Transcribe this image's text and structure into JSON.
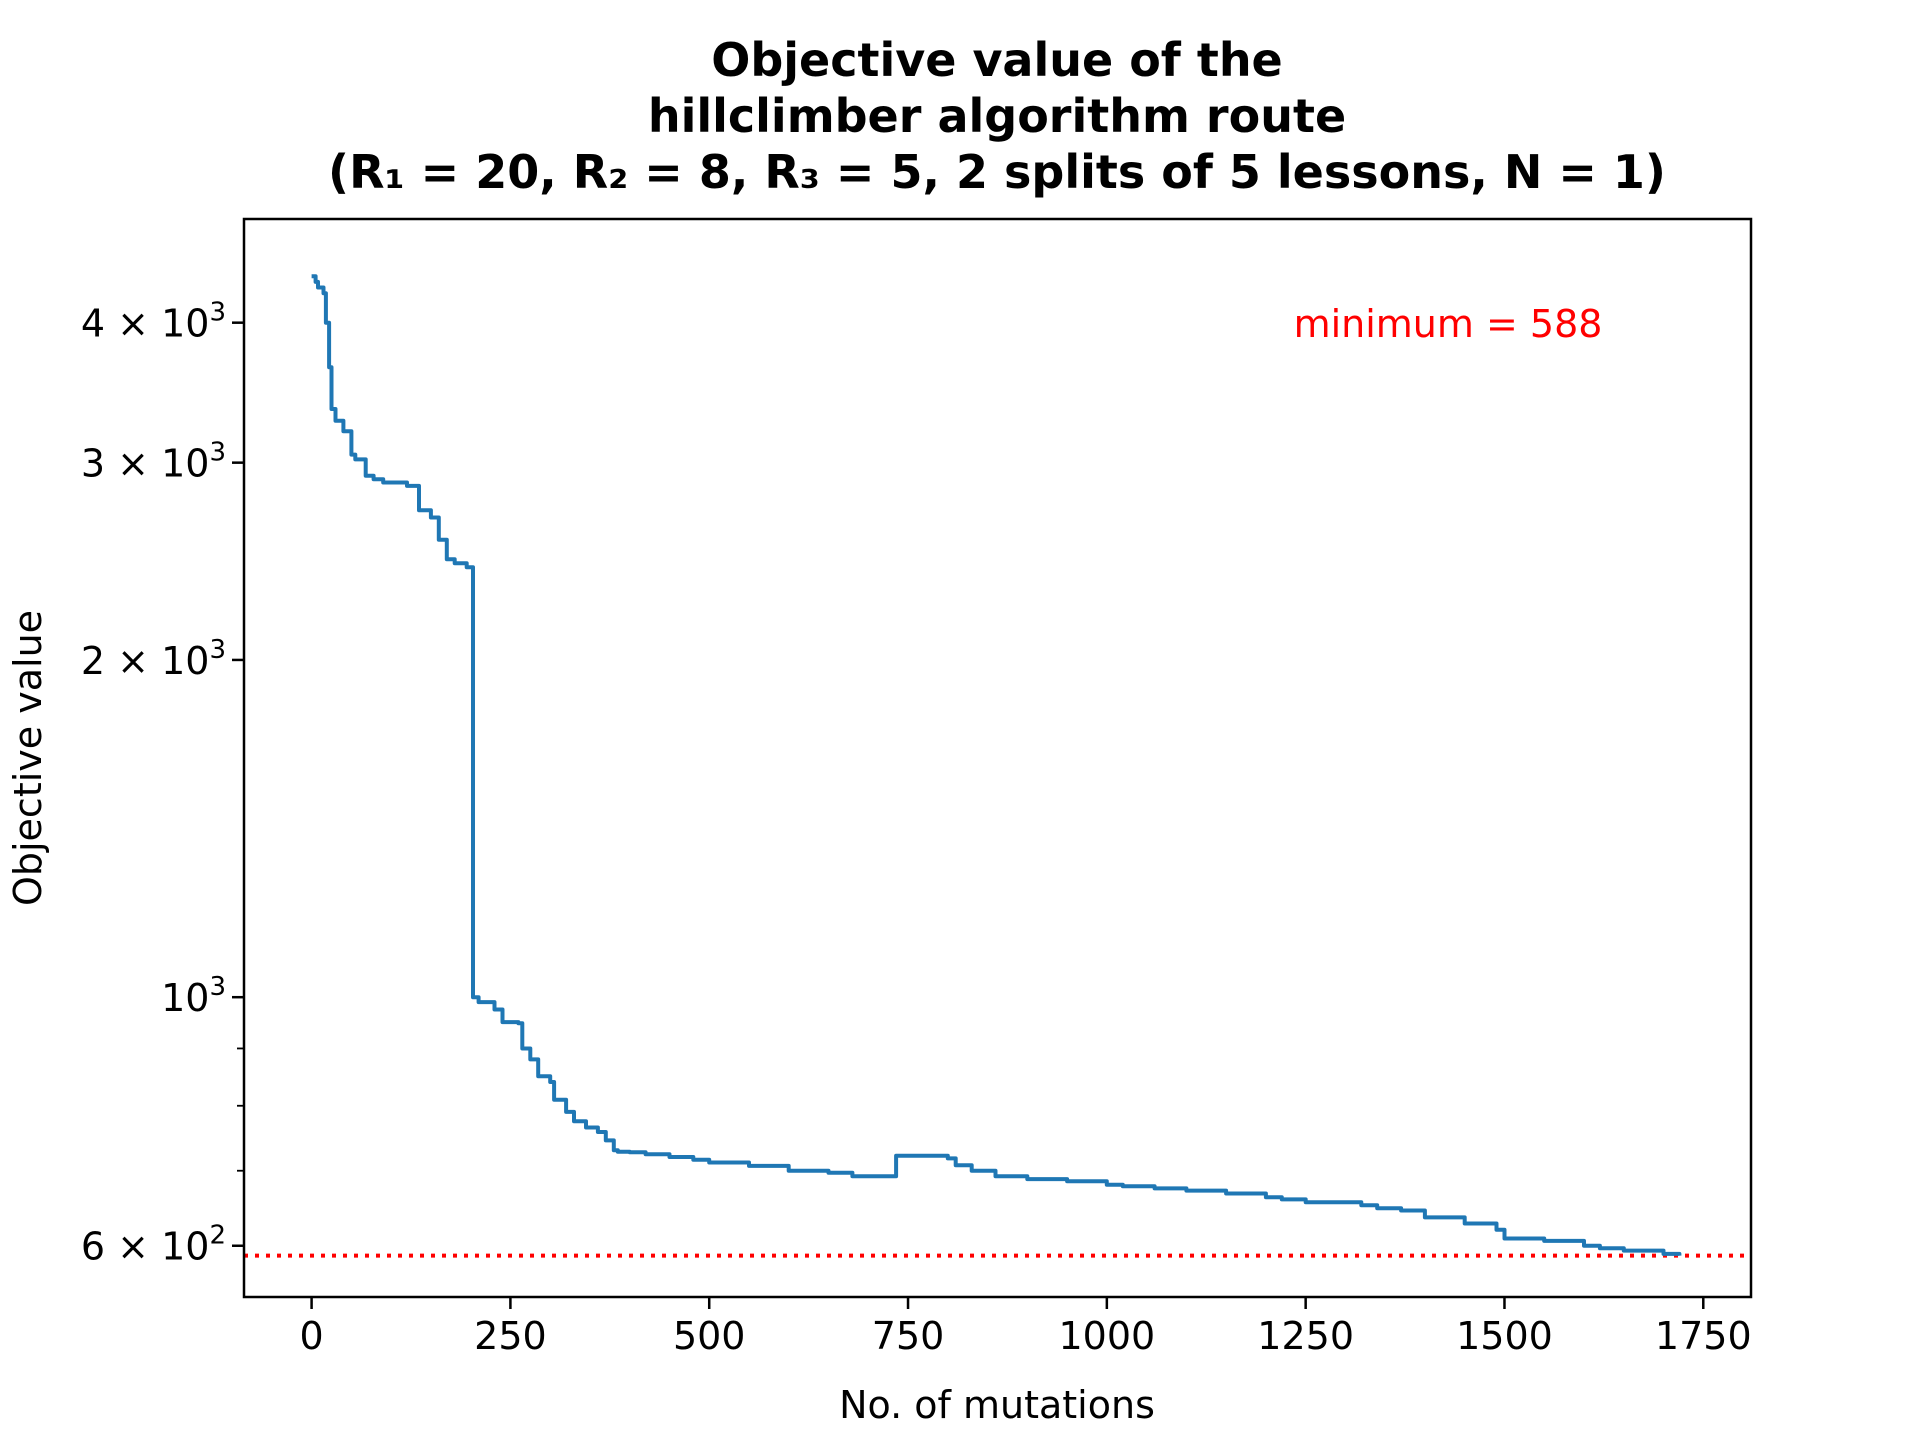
{
  "chart_data": {
    "type": "line",
    "title_lines": [
      "Objective value of the",
      "hillclimber algorithm route",
      "(R₁ = 20, R₂ = 8, R₃ = 5, 2 splits of 5 lessons, N = 1)"
    ],
    "xlabel": "No. of mutations",
    "ylabel": "Objective value",
    "xscale": "linear",
    "yscale": "log",
    "xlim": [
      -85,
      1810
    ],
    "ylim": [
      540,
      4950
    ],
    "x_ticks": [
      0,
      250,
      500,
      750,
      1000,
      1250,
      1500,
      1750
    ],
    "x_tick_labels": [
      "0",
      "250",
      "500",
      "750",
      "1000",
      "1250",
      "1500",
      "1750"
    ],
    "y_major_ticks": [
      {
        "value": 600,
        "mantissa": "6",
        "exponent": "2"
      },
      {
        "value": 1000,
        "mantissa": "",
        "exponent": "3"
      },
      {
        "value": 2000,
        "mantissa": "2",
        "exponent": "3"
      },
      {
        "value": 3000,
        "mantissa": "3",
        "exponent": "3"
      },
      {
        "value": 4000,
        "mantissa": "4",
        "exponent": "3"
      }
    ],
    "y_minor_ticks": [
      700,
      800,
      900
    ],
    "grid": false,
    "line_color": "#1f77b4",
    "series": [
      {
        "x": [
          0,
          5,
          8,
          15,
          18,
          22,
          25,
          30,
          40,
          50,
          55,
          68,
          78,
          90,
          120,
          135,
          150,
          160,
          170,
          180,
          195,
          200,
          203,
          205,
          210,
          230,
          240,
          260,
          265,
          275,
          285,
          300,
          305,
          320,
          330,
          345,
          360,
          370,
          380,
          385,
          400,
          420,
          450,
          480,
          500,
          550,
          600,
          650,
          680,
          700,
          730,
          735,
          800,
          810,
          830,
          860,
          900,
          950,
          1000,
          1020,
          1060,
          1100,
          1150,
          1200,
          1220,
          1250,
          1320,
          1340,
          1370,
          1400,
          1450,
          1490,
          1500,
          1550,
          1600,
          1620,
          1650,
          1700,
          1720
        ],
        "y": [
          4400,
          4350,
          4300,
          4250,
          4000,
          3650,
          3350,
          3270,
          3200,
          3050,
          3020,
          2920,
          2900,
          2880,
          2860,
          2720,
          2680,
          2560,
          2460,
          2440,
          2420,
          2420,
          1000,
          1000,
          990,
          975,
          950,
          948,
          900,
          880,
          850,
          840,
          810,
          790,
          775,
          765,
          758,
          745,
          730,
          728,
          727,
          724,
          720,
          716,
          712,
          707,
          700,
          697,
          692,
          692,
          692,
          722,
          718,
          708,
          700,
          692,
          688,
          685,
          680,
          678,
          675,
          672,
          668,
          663,
          660,
          656,
          652,
          648,
          645,
          636,
          628,
          620,
          609,
          606,
          600,
          597,
          594,
          590,
          588
        ]
      }
    ],
    "reference_line": {
      "y": 588,
      "color": "#ff0000",
      "style": "dotted"
    },
    "annotation": {
      "text": "minimum = 588",
      "color": "#ff0000"
    }
  }
}
